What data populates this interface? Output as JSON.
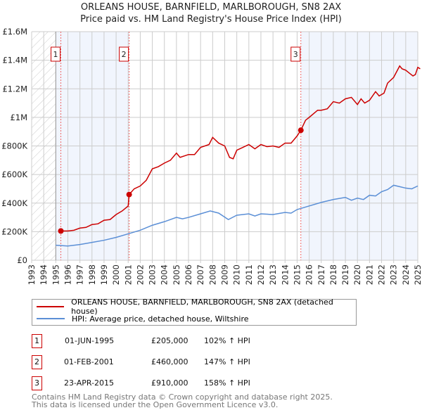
{
  "chart_data": {
    "type": "line",
    "title": "ORLEANS HOUSE, BARNFIELD, MARLBOROUGH, SN8 2AX",
    "subtitle": "Price paid vs. HM Land Registry's House Price Index (HPI)",
    "xlim": [
      1993,
      2025
    ],
    "ylim": [
      0,
      1600000
    ],
    "x_ticks": [
      "1993",
      "1994",
      "1995",
      "1996",
      "1997",
      "1998",
      "1999",
      "2000",
      "2001",
      "2002",
      "2003",
      "2004",
      "2005",
      "2006",
      "2007",
      "2008",
      "2009",
      "2010",
      "2011",
      "2012",
      "2013",
      "2014",
      "2015",
      "2016",
      "2017",
      "2018",
      "2019",
      "2020",
      "2021",
      "2022",
      "2023",
      "2024",
      "2025"
    ],
    "y_ticks": [
      {
        "v": 0,
        "label": "£0"
      },
      {
        "v": 200000,
        "label": "£200K"
      },
      {
        "v": 400000,
        "label": "£400K"
      },
      {
        "v": 600000,
        "label": "£600K"
      },
      {
        "v": 800000,
        "label": "£800K"
      },
      {
        "v": 1000000,
        "label": "£1M"
      },
      {
        "v": 1200000,
        "label": "£1.2M"
      },
      {
        "v": 1400000,
        "label": "£1.4M"
      },
      {
        "v": 1600000,
        "label": "£1.6M"
      }
    ],
    "grid": true,
    "series": [
      {
        "name": "ORLEANS HOUSE, BARNFIELD, MARLBOROUGH, SN8 2AX (detached house)",
        "color": "#cc0000",
        "x": [
          1995.4,
          1996,
          1996.5,
          1997,
          1997.5,
          1998,
          1998.5,
          1999,
          1999.5,
          2000,
          2000.5,
          2001,
          2001.08,
          2001.5,
          2002,
          2002.5,
          2003,
          2003.5,
          2004,
          2004.5,
          2005,
          2005.3,
          2006,
          2006.5,
          2007,
          2007.7,
          2008,
          2008.5,
          2009,
          2009.4,
          2009.7,
          2010,
          2010.5,
          2011,
          2011.5,
          2012,
          2012.5,
          2013,
          2013.5,
          2014,
          2014.5,
          2015,
          2015.31,
          2015.7,
          2016,
          2016.7,
          2017,
          2017.5,
          2018,
          2018.5,
          2019,
          2019.5,
          2020,
          2020.3,
          2020.6,
          2021,
          2021.5,
          2021.8,
          2022.2,
          2022.5,
          2023,
          2023.5,
          2023.7,
          2024,
          2024.3,
          2024.6,
          2024.8,
          2025,
          2025.2
        ],
        "y": [
          205000,
          205000,
          210000,
          225000,
          230000,
          250000,
          255000,
          280000,
          285000,
          320000,
          345000,
          380000,
          460000,
          500000,
          520000,
          560000,
          640000,
          655000,
          680000,
          700000,
          750000,
          720000,
          740000,
          740000,
          790000,
          810000,
          860000,
          820000,
          800000,
          720000,
          710000,
          770000,
          790000,
          810000,
          780000,
          810000,
          795000,
          800000,
          790000,
          820000,
          820000,
          870000,
          910000,
          980000,
          1000000,
          1050000,
          1050000,
          1060000,
          1110000,
          1100000,
          1130000,
          1140000,
          1090000,
          1130000,
          1100000,
          1120000,
          1180000,
          1150000,
          1170000,
          1240000,
          1280000,
          1360000,
          1340000,
          1330000,
          1310000,
          1290000,
          1300000,
          1350000,
          1340000
        ]
      },
      {
        "name": "HPI: Average price, detached house, Wiltshire",
        "color": "#5b8fd6",
        "x": [
          1995,
          1996,
          1997,
          1998,
          1999,
          2000,
          2001,
          2002,
          2003,
          2004,
          2005,
          2005.5,
          2006,
          2007,
          2007.8,
          2008.5,
          2009.3,
          2010,
          2011,
          2011.5,
          2012,
          2013,
          2014,
          2014.5,
          2015,
          2016,
          2017,
          2018,
          2019,
          2019.5,
          2020,
          2020.5,
          2021,
          2021.5,
          2022,
          2022.5,
          2023,
          2023.5,
          2024,
          2024.5,
          2025
        ],
        "y": [
          105000,
          100000,
          110000,
          125000,
          140000,
          160000,
          185000,
          210000,
          245000,
          270000,
          300000,
          290000,
          300000,
          325000,
          345000,
          330000,
          285000,
          315000,
          325000,
          310000,
          325000,
          320000,
          335000,
          330000,
          355000,
          380000,
          405000,
          425000,
          440000,
          420000,
          435000,
          425000,
          455000,
          450000,
          480000,
          495000,
          525000,
          515000,
          505000,
          500000,
          520000
        ]
      }
    ],
    "sales": [
      {
        "num": "1",
        "x": 1995.42,
        "y": 205000,
        "date": "01-JUN-1995",
        "price": "£205,000",
        "hpi": "102% ↑ HPI"
      },
      {
        "num": "2",
        "x": 2001.08,
        "y": 460000,
        "date": "01-FEB-2001",
        "price": "£460,000",
        "hpi": "147% ↑ HPI"
      },
      {
        "num": "3",
        "x": 2015.31,
        "y": 910000,
        "date": "23-APR-2015",
        "price": "£910,000",
        "hpi": "158% ↑ HPI"
      }
    ],
    "legend_placement": "bottom"
  },
  "footer": {
    "line1": "Contains HM Land Registry data © Crown copyright and database right 2025.",
    "line2": "This data is licensed under the Open Government Licence v3.0."
  }
}
